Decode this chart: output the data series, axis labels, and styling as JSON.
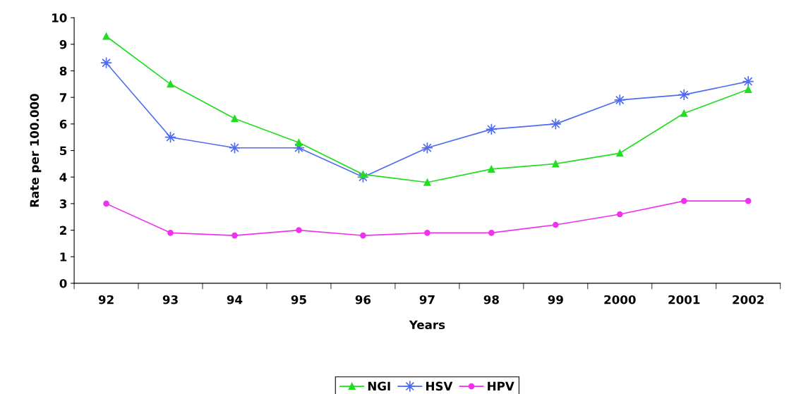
{
  "chart_data": {
    "type": "line",
    "xlabel": "Years",
    "ylabel": "Rate per 100.000",
    "categories": [
      "92",
      "93",
      "94",
      "95",
      "96",
      "97",
      "98",
      "99",
      "2000",
      "2001",
      "2002"
    ],
    "ylim": [
      0,
      10
    ],
    "yticks": [
      0,
      1,
      2,
      3,
      4,
      5,
      6,
      7,
      8,
      9,
      10
    ],
    "grid": false,
    "legend": "bottom",
    "series": [
      {
        "name": "NGI",
        "color": "#22dd22",
        "marker": "triangle",
        "values": [
          9.3,
          7.5,
          6.2,
          5.3,
          4.1,
          3.8,
          4.3,
          4.5,
          4.9,
          6.4,
          7.3
        ]
      },
      {
        "name": "HSV",
        "color": "#4f6bf0",
        "marker": "star",
        "values": [
          8.3,
          5.5,
          5.1,
          5.1,
          4.0,
          5.1,
          5.8,
          6.0,
          6.9,
          7.1,
          7.6
        ]
      },
      {
        "name": "HPV",
        "color": "#ee33ee",
        "marker": "circle",
        "values": [
          3.0,
          1.9,
          1.8,
          2.0,
          1.8,
          1.9,
          1.9,
          2.2,
          2.6,
          3.1,
          3.1
        ]
      }
    ]
  }
}
